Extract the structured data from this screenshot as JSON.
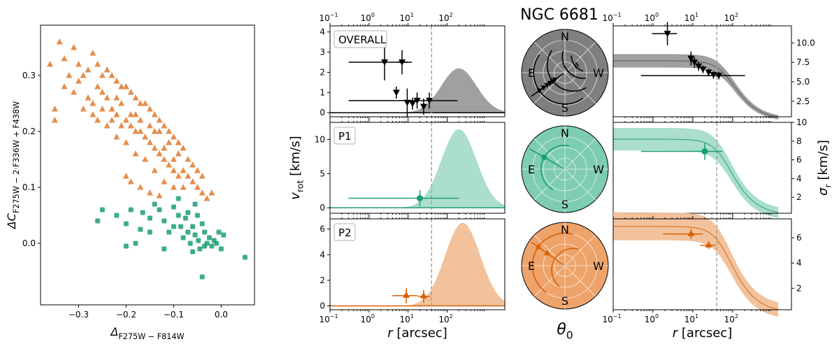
{
  "figure": {
    "title": "NGC 6681",
    "colors": {
      "p1": "#1b9e77",
      "p1_fill": "#a6dcc9",
      "p2": "#d95f02",
      "p2_fill": "#f1bf98",
      "p2_marker": "#e07a2e",
      "overall": "#000000",
      "overall_fill": "#9b9b9b",
      "dashed": "#999999"
    }
  },
  "chart_data": [
    {
      "type": "scatter",
      "id": "chromosome-map",
      "xlabel": "Δ_F275W − F814W",
      "ylabel": "ΔC_F275W − 2·F336W + F438W",
      "xlim": [
        -0.38,
        0.07
      ],
      "ylim": [
        -0.11,
        0.39
      ],
      "x_ticks": [
        -0.3,
        -0.2,
        -0.1,
        0.0
      ],
      "x_tick_labels": [
        "−0.3",
        "−0.2",
        "−0.1",
        "0.0"
      ],
      "y_ticks": [
        0.0,
        0.1,
        0.2,
        0.3
      ],
      "y_tick_labels": [
        "0.0",
        "0.1",
        "0.2",
        "0.3"
      ],
      "series": [
        {
          "name": "P1",
          "marker": "square",
          "color": "#1b9e77",
          "points": [
            [
              -0.26,
              0.04
            ],
            [
              -0.22,
              0.05
            ],
            [
              -0.2,
              0.035
            ],
            [
              -0.19,
              0.06
            ],
            [
              -0.17,
              0.025
            ],
            [
              -0.165,
              0.055
            ],
            [
              -0.15,
              0.045
            ],
            [
              -0.14,
              0.07
            ],
            [
              -0.13,
              0.06
            ],
            [
              -0.12,
              0.04
            ],
            [
              -0.11,
              0.02
            ],
            [
              -0.1,
              0.065
            ],
            [
              -0.09,
              0.05
            ],
            [
              -0.085,
              0.03
            ],
            [
              -0.08,
              0.01
            ],
            [
              -0.075,
              0.045
            ],
            [
              -0.07,
              0.02
            ],
            [
              -0.065,
              0.0
            ],
            [
              -0.06,
              0.03
            ],
            [
              -0.055,
              0.015
            ],
            [
              -0.05,
              0.05
            ],
            [
              -0.048,
              0.005
            ],
            [
              -0.045,
              -0.01
            ],
            [
              -0.04,
              0.035
            ],
            [
              -0.035,
              0.02
            ],
            [
              -0.03,
              0.0
            ],
            [
              -0.025,
              0.01
            ],
            [
              -0.02,
              -0.005
            ],
            [
              -0.01,
              0.0
            ],
            [
              -0.005,
              0.02
            ],
            [
              0.005,
              0.015
            ],
            [
              0.0,
              -0.01
            ],
            [
              -0.12,
              -0.01
            ],
            [
              -0.18,
              0.0
            ],
            [
              -0.2,
              -0.005
            ],
            [
              -0.06,
              -0.015
            ],
            [
              -0.04,
              -0.06
            ],
            [
              0.05,
              -0.025
            ],
            [
              -0.09,
              0.08
            ],
            [
              -0.055,
              0.07
            ],
            [
              -0.15,
              0.02
            ],
            [
              -0.1,
              0.03
            ],
            [
              -0.07,
              0.055
            ],
            [
              -0.035,
              -0.005
            ],
            [
              -0.015,
              0.005
            ],
            [
              -0.25,
              0.06
            ]
          ]
        },
        {
          "name": "P2",
          "marker": "triangle",
          "color": "#e07a2e",
          "points": [
            [
              -0.34,
              0.36
            ],
            [
              -0.36,
              0.32
            ],
            [
              -0.33,
              0.33
            ],
            [
              -0.31,
              0.35
            ],
            [
              -0.3,
              0.32
            ],
            [
              -0.29,
              0.3
            ],
            [
              -0.28,
              0.31
            ],
            [
              -0.27,
              0.34
            ],
            [
              -0.26,
              0.32
            ],
            [
              -0.25,
              0.3
            ],
            [
              -0.24,
              0.31
            ],
            [
              -0.23,
              0.3
            ],
            [
              -0.22,
              0.29
            ],
            [
              -0.21,
              0.28
            ],
            [
              -0.2,
              0.28
            ],
            [
              -0.19,
              0.27
            ],
            [
              -0.18,
              0.26
            ],
            [
              -0.17,
              0.25
            ],
            [
              -0.16,
              0.25
            ],
            [
              -0.15,
              0.24
            ],
            [
              -0.14,
              0.23
            ],
            [
              -0.13,
              0.22
            ],
            [
              -0.12,
              0.21
            ],
            [
              -0.11,
              0.2
            ],
            [
              -0.1,
              0.19
            ],
            [
              -0.09,
              0.18
            ],
            [
              -0.08,
              0.17
            ],
            [
              -0.07,
              0.15
            ],
            [
              -0.06,
              0.14
            ],
            [
              -0.05,
              0.13
            ],
            [
              -0.04,
              0.12
            ],
            [
              -0.33,
              0.28
            ],
            [
              -0.31,
              0.27
            ],
            [
              -0.3,
              0.29
            ],
            [
              -0.28,
              0.26
            ],
            [
              -0.27,
              0.25
            ],
            [
              -0.25,
              0.27
            ],
            [
              -0.24,
              0.26
            ],
            [
              -0.23,
              0.24
            ],
            [
              -0.22,
              0.23
            ],
            [
              -0.21,
              0.25
            ],
            [
              -0.2,
              0.22
            ],
            [
              -0.19,
              0.21
            ],
            [
              -0.18,
              0.2
            ],
            [
              -0.17,
              0.2
            ],
            [
              -0.16,
              0.19
            ],
            [
              -0.15,
              0.18
            ],
            [
              -0.14,
              0.17
            ],
            [
              -0.13,
              0.16
            ],
            [
              -0.12,
              0.15
            ],
            [
              -0.11,
              0.14
            ],
            [
              -0.1,
              0.13
            ],
            [
              -0.09,
              0.12
            ],
            [
              -0.08,
              0.1
            ],
            [
              -0.26,
              0.22
            ],
            [
              -0.24,
              0.21
            ],
            [
              -0.22,
              0.19
            ],
            [
              -0.2,
              0.18
            ],
            [
              -0.18,
              0.16
            ],
            [
              -0.16,
              0.15
            ],
            [
              -0.14,
              0.13
            ],
            [
              -0.12,
              0.11
            ],
            [
              -0.1,
              0.1
            ],
            [
              -0.2,
              0.12
            ],
            [
              -0.19,
              0.11
            ],
            [
              -0.17,
              0.1
            ],
            [
              -0.15,
              0.09
            ],
            [
              -0.13,
              0.085
            ],
            [
              -0.29,
              0.24
            ],
            [
              -0.27,
              0.23
            ],
            [
              -0.25,
              0.24
            ],
            [
              -0.23,
              0.22
            ],
            [
              -0.21,
              0.21
            ],
            [
              -0.19,
              0.23
            ],
            [
              -0.17,
              0.22
            ],
            [
              -0.15,
              0.21
            ],
            [
              -0.13,
              0.2
            ],
            [
              -0.11,
              0.18
            ],
            [
              -0.09,
              0.16
            ],
            [
              -0.07,
              0.12
            ],
            [
              -0.05,
              0.1
            ],
            [
              -0.03,
              0.08
            ],
            [
              -0.02,
              0.09
            ],
            [
              -0.35,
              0.22
            ],
            [
              -0.35,
              0.24
            ],
            [
              -0.32,
              0.3
            ],
            [
              -0.26,
              0.28
            ],
            [
              -0.22,
              0.26
            ],
            [
              -0.18,
              0.23
            ],
            [
              -0.14,
              0.2
            ],
            [
              -0.12,
              0.17
            ],
            [
              -0.1,
              0.15
            ],
            [
              -0.08,
              0.13
            ],
            [
              -0.06,
              0.11
            ],
            [
              -0.04,
              0.09
            ]
          ]
        }
      ]
    },
    {
      "type": "grid",
      "id": "kinematics",
      "rows": [
        "OVERALL",
        "P1",
        "P2"
      ],
      "x_scale": "log",
      "xlim": [
        0.1,
        3000
      ],
      "x_tick_labels": [
        "10",
        "10",
        "10",
        "10"
      ],
      "x_tick_exponents": [
        "−1",
        "0",
        "1",
        "2"
      ],
      "xlabel": "r",
      "xlabel_unit": "[arcsec]",
      "ylabel_left": "v",
      "ylabel_left_sub": "rot",
      "ylabel_left_unit": "[km/s]",
      "ylabel_right": "σ",
      "ylabel_right_sub": "r",
      "ylabel_right_unit": "[km/s]",
      "polar_label": "θ",
      "polar_label_sub": "0",
      "compass": [
        "N",
        "E",
        "W",
        "S"
      ],
      "dashed_r": 40,
      "vrot_panels": [
        {
          "label": "OVERALL",
          "ylim": [
            -0.2,
            4.3
          ],
          "yticks": [
            0,
            1,
            2,
            3,
            4
          ],
          "ytick_labels": [
            "0",
            "1",
            "2",
            "3",
            "4"
          ],
          "model_peak_r": 200,
          "model_peak_v": 2.2,
          "points": [
            [
              2.5,
              2.5,
              0.9,
              10
            ],
            [
              5,
              1.0,
              0.3,
              0.6
            ],
            [
              7,
              2.5,
              0.6,
              2.8
            ],
            [
              9.5,
              0.5,
              0.7,
              0.5
            ],
            [
              13,
              0.45,
              0.3,
              0.35
            ],
            [
              17,
              0.6,
              0.4,
              0.5
            ],
            [
              25,
              0.3,
              0.4,
              0.25
            ],
            [
              35,
              0.6,
              0.4,
              150
            ]
          ]
        },
        {
          "label": "P1",
          "ylim": [
            -0.8,
            12.5
          ],
          "yticks": [
            0,
            5,
            10
          ],
          "ytick_labels": [
            "0",
            "5",
            "10"
          ],
          "model_peak_r": 200,
          "model_peak_v": 11.5,
          "points": [
            [
              20,
              1.4,
              1.2,
              180
            ]
          ]
        },
        {
          "label": "P2",
          "ylim": [
            -0.3,
            6.8
          ],
          "yticks": [
            0,
            2,
            4,
            6
          ],
          "ytick_labels": [
            "0",
            "2",
            "4",
            "6"
          ],
          "model_peak_r": 250,
          "model_peak_v": 6.5,
          "points": [
            [
              9,
              0.8,
              0.6,
              8.4
            ],
            [
              25,
              0.75,
              0.5,
              12
            ]
          ]
        }
      ],
      "sigma_panels": [
        {
          "label": "OVERALL",
          "ylim": [
            0.5,
            12.2
          ],
          "yticks": [
            2.5,
            5.0,
            7.5,
            10.0
          ],
          "ytick_labels": [
            "2.5",
            "5.0",
            "7.5",
            "10.0"
          ],
          "model_sigma0": 7.7,
          "model_rc": 60,
          "points": [
            [
              2.3,
              11.2,
              1.5,
              1.7
            ],
            [
              9,
              8.0,
              0.9,
              1.0
            ],
            [
              11,
              7.5,
              0.7,
              0.8
            ],
            [
              14,
              7.0,
              0.6,
              0.6
            ],
            [
              18,
              6.6,
              0.5,
              0.5
            ],
            [
              25,
              6.2,
              0.5,
              0.5
            ],
            [
              33,
              5.9,
              0.5,
              0.5
            ],
            [
              45,
              5.8,
              0.5,
              160
            ]
          ]
        },
        {
          "label": "P1",
          "ylim": [
            0.3,
            10
          ],
          "yticks": [
            2,
            4,
            6,
            8,
            10
          ],
          "ytick_labels": [
            "2",
            "4",
            "6",
            "8",
            "10"
          ],
          "model_sigma0": 8.2,
          "model_rc": 50,
          "points": [
            [
              20,
              6.9,
              0.9,
              35
            ]
          ]
        },
        {
          "label": "P2",
          "ylim": [
            0.3,
            7.5
          ],
          "yticks": [
            2,
            4,
            6
          ],
          "ytick_labels": [
            "2",
            "4",
            "6"
          ],
          "model_sigma0": 6.9,
          "model_rc": 50,
          "points": [
            [
              9,
              6.3,
              0.4,
              9
            ],
            [
              25,
              5.4,
              0.3,
              12
            ]
          ]
        }
      ],
      "polar_panels": [
        {
          "label": "OVERALL",
          "fill": "#7f7f7f",
          "color": "#000000",
          "arcs": [
            0.72,
            0.6,
            0.5,
            0.42,
            0.35,
            0.28
          ],
          "angle_deg": 215
        },
        {
          "label": "P1",
          "fill": "#7fcdb1",
          "color": "#1b9e77",
          "arcs": [
            0.55
          ],
          "angle_deg": 150
        },
        {
          "label": "P2",
          "fill": "#eea36a",
          "color": "#d95f02",
          "arcs": [
            0.75,
            0.5
          ],
          "angle_deg": 145
        }
      ]
    }
  ]
}
